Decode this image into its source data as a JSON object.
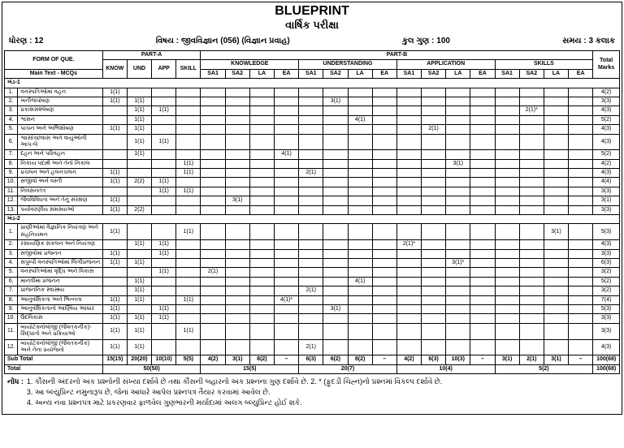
{
  "title": "BLUEPRINT",
  "subtitle": "વાર્ષિક પરીક્ષા",
  "header": {
    "std_label": "ધોરણ :",
    "std": "12",
    "subj_label": "વિષય :",
    "subj": "જીવવિજ્ઞાન (056)   (વિજ્ઞાન પ્રવાહ)",
    "marks_label": "કુલ ગુણ :",
    "marks": "100",
    "time_label": "સમય :",
    "time": "3 કલાક"
  },
  "cols": {
    "form": "FORM OF QUE.",
    "main": "Main Text - MCQs",
    "partA": "PART-A",
    "partB": "PART-B",
    "know": "KNOW",
    "und": "UND",
    "app": "APP",
    "skill": "SKILL",
    "knowledge": "KNOWLEDGE",
    "understanding": "UNDERSTANDING",
    "application": "APPLICATION",
    "skills": "SKILLS",
    "sa1": "SA1",
    "sa2": "SA2",
    "la": "LA",
    "ea": "EA",
    "total": "Total Marks"
  },
  "sections": {
    "s1": "ખંડ-1",
    "s2": "ખંડ-2"
  },
  "topics1": [
    "વનસ્પતિઓમાં વહન",
    "ખનીજપોષણ",
    "પ્રકાશસંશ્લેષણ",
    "શ્વસન",
    "પાચન અને અભિશોષણ",
    "શ્વાસોચ્છવાસ અને વાયુઓની આપ-લે",
    "દહન અને પરિવહન",
    "નિકાય પદાર્થ અને તેનો નિકાલ",
    "પ્રચલન અને હલનચલન",
    "સજીવો અને વસ્તી",
    "નિવસનતંત્ર",
    "જૈવવિવિધતા અને તેનું સંરક્ષણ",
    "પર્યાવરણીય સમસ્યાઓ"
  ],
  "topics2": [
    "પ્રાણીઓમાં વૈજ્ઞાનિક નિયંત્રણ અને સહનિયમન",
    "રસાયણિક સંકલન અને નિયંત્રણ",
    "સજીવોમાં પ્રજનન",
    "સપુષ્પી વનસ્પતિઓમાં લિંગીપ્રજનન",
    "વનસ્પતિઓમાં વૃદ્ધિ અને વિકાસ",
    "માનવીમાં પ્રજનન",
    "પ્રાજનનિક સ્વાસ્થ્ય",
    "આનુવંશિકતા અને ભિન્નતા",
    "આનુવંશિકતાનો આણ્વિય આધાર",
    "ઉદવિકાસ",
    "બાયોટેક્નોલોજી (જૈવતકનીક)- સિદ્ધાંતો અને પ્રક્રિયાઓ",
    "બાયોટેક્નોલોજી (જૈવતકનીક) અને તેના પ્રયોજનો"
  ],
  "rows1": [
    [
      "1(1)",
      "",
      "",
      "",
      "",
      "",
      "",
      "",
      "",
      "",
      "",
      "",
      "",
      "",
      "",
      "",
      "",
      "",
      "",
      "",
      "4(2)"
    ],
    [
      "1(1)",
      "1(1)",
      "",
      "",
      "",
      "",
      "",
      "",
      "",
      "3(1)",
      "",
      "",
      "",
      "",
      "",
      "",
      "",
      "",
      "",
      "",
      "3(3)"
    ],
    [
      "",
      "1(1)",
      "1(1)",
      "",
      "",
      "",
      "",
      "",
      "",
      "",
      "",
      "",
      "",
      "",
      "",
      "",
      "",
      "2(1)*",
      "",
      "",
      "4(3)"
    ],
    [
      "",
      "1(1)",
      "",
      "",
      "",
      "",
      "",
      "",
      "",
      "",
      "4(1)",
      "",
      "",
      "",
      "",
      "",
      "",
      "",
      "",
      "",
      "5(2)"
    ],
    [
      "1(1)",
      "1(1)",
      "",
      "",
      "",
      "",
      "",
      "",
      "",
      "",
      "",
      "",
      "",
      "2(1)",
      "",
      "",
      "",
      "",
      "",
      "",
      "4(3)"
    ],
    [
      "",
      "1(1)",
      "1(1)",
      "",
      "",
      "",
      "",
      "",
      "",
      "",
      "",
      "",
      "",
      "",
      "",
      "",
      "",
      "",
      "",
      "",
      "4(3)"
    ],
    [
      "",
      "1(1)",
      "",
      "",
      "",
      "",
      "",
      "4(1)",
      "",
      "",
      "",
      "",
      "",
      "",
      "",
      "",
      "",
      "",
      "",
      "",
      "5(2)"
    ],
    [
      "",
      "",
      "",
      "1(1)",
      "",
      "",
      "",
      "",
      "",
      "",
      "",
      "",
      "",
      "",
      "3(1)",
      "",
      "",
      "",
      "",
      "",
      "4(2)"
    ],
    [
      "1(1)",
      "",
      "",
      "1(1)",
      "",
      "",
      "",
      "",
      "2(1)",
      "",
      "",
      "",
      "",
      "",
      "",
      "",
      "",
      "",
      "",
      "",
      "4(3)"
    ],
    [
      "1(1)",
      "2(2)",
      "1(1)",
      "",
      "",
      "",
      "",
      "",
      "",
      "",
      "",
      "",
      "",
      "",
      "",
      "",
      "",
      "",
      "",
      "",
      "4(4)"
    ],
    [
      "",
      "",
      "1(1)",
      "1(1)",
      "",
      "",
      "",
      "",
      "",
      "",
      "",
      "",
      "",
      "",
      "",
      "",
      "",
      "",
      "",
      "",
      "3(3)"
    ],
    [
      "1(1)",
      "",
      "",
      "",
      "",
      "3(1)",
      "",
      "",
      "",
      "",
      "",
      "",
      "",
      "",
      "",
      "",
      "",
      "",
      "",
      "",
      "3(1)"
    ],
    [
      "1(1)",
      "2(2)",
      "",
      "",
      "",
      "",
      "",
      "",
      "",
      "",
      "",
      "",
      "",
      "",
      "",
      "",
      "",
      "",
      "",
      "",
      "3(3)"
    ]
  ],
  "rows2": [
    [
      "1(1)",
      "",
      "",
      "1(1)",
      "",
      "",
      "",
      "",
      "",
      "",
      "",
      "",
      "",
      "",
      "",
      "",
      "",
      "",
      "3(1)",
      "",
      "5(3)"
    ],
    [
      "",
      "1(1)",
      "1(1)",
      "",
      "",
      "",
      "",
      "",
      "",
      "",
      "",
      "",
      "2(1)*",
      "",
      "",
      "",
      "",
      "",
      "",
      "",
      "4(3)"
    ],
    [
      "1(1)",
      "",
      "1(1)",
      "",
      "",
      "",
      "",
      "",
      "",
      "",
      "",
      "",
      "",
      "",
      "",
      "",
      "",
      "",
      "",
      "",
      "3(3)"
    ],
    [
      "1(1)",
      "1(1)",
      "",
      "",
      "",
      "",
      "",
      "",
      "",
      "",
      "",
      "",
      "",
      "",
      "3(1)*",
      "",
      "",
      "",
      "",
      "",
      "6(3)"
    ],
    [
      "",
      "",
      "1(1)",
      "",
      "2(1)",
      "",
      "",
      "",
      "",
      "",
      "",
      "",
      "",
      "",
      "",
      "",
      "",
      "",
      "",
      "",
      "3(2)"
    ],
    [
      "",
      "1(1)",
      "",
      "",
      "",
      "",
      "",
      "",
      "",
      "",
      "4(1)",
      "",
      "",
      "",
      "",
      "",
      "",
      "",
      "",
      "",
      "5(2)"
    ],
    [
      "",
      "1(1)",
      "",
      "",
      "",
      "",
      "",
      "",
      "2(1)",
      "",
      "",
      "",
      "",
      "",
      "",
      "",
      "",
      "",
      "",
      "",
      "3(2)"
    ],
    [
      "1(1)",
      "1(1)",
      "",
      "1(1)",
      "",
      "",
      "",
      "4(1)*",
      "",
      "",
      "",
      "",
      "",
      "",
      "",
      "",
      "",
      "",
      "",
      "",
      "7(4)"
    ],
    [
      "1(1)",
      "",
      "1(1)",
      "",
      "",
      "",
      "",
      "",
      "",
      "3(1)",
      "",
      "",
      "",
      "",
      "",
      "",
      "",
      "",
      "",
      "",
      "5(3)"
    ],
    [
      "1(1)",
      "1(1)",
      "1(1)",
      "",
      "",
      "",
      "",
      "",
      "",
      "",
      "",
      "",
      "",
      "",
      "",
      "",
      "",
      "",
      "",
      "",
      "3(3)"
    ],
    [
      "1(1)",
      "1(1)",
      "",
      "1(1)",
      "",
      "",
      "",
      "",
      "",
      "",
      "",
      "",
      "",
      "",
      "",
      "",
      "",
      "",
      "",
      "",
      "3(3)"
    ],
    [
      "1(1)",
      "1(1)",
      "",
      "",
      "",
      "",
      "",
      "",
      "2(1)",
      "",
      "",
      "",
      "",
      "",
      "",
      "",
      "",
      "",
      "",
      "",
      "4(3)"
    ]
  ],
  "subtotal": {
    "label": "Sub Total",
    "cells": [
      "15(15)",
      "20(20)",
      "10(10)",
      "5(5)",
      "4(2)",
      "3(1)",
      "8(2)",
      "–",
      "6(3)",
      "6(2)",
      "8(2)",
      "–",
      "4(2)",
      "6(3)",
      "10(3)",
      "–",
      "3(1)",
      "2(1)",
      "3(1)",
      "–",
      "100(68)"
    ]
  },
  "grand": {
    "label": "Total",
    "a": "50(50)",
    "k": "15(5)",
    "u": "20(7)",
    "ap": "10(4)",
    "sk": "5(2)",
    "t": "100(68)"
  },
  "notes": {
    "label": "નોંધ :",
    "lines": [
      "1. કૌંસની અંદરનો અંક પ્રશ્નોની સંખ્યા દર્શાવે છે તથા કૌંસની બહારનો અંક પ્રશ્નના ગુણ દર્શાવે છે.   2. * (ફુદડી ચિહ્ન)નો પ્રશ્નમાં વિકલ્પ દર્શાવે છે.",
      "3. આ બ્લ્યુપ્રિન્ટ નમુનારૂપ છે, જેનાં આધારે આપેલ પ્રશ્નપત્ર તૈયાર કરવામાં આવેલ છે.",
      "4. અન્ય નવા પ્રશ્નપત્ર માટે પ્રકરણવાર ફાળવેલ ગુણભારની મર્યાદામાં અલગ બ્લ્યુપ્રિન્ટ હોઈ શકે."
    ]
  }
}
